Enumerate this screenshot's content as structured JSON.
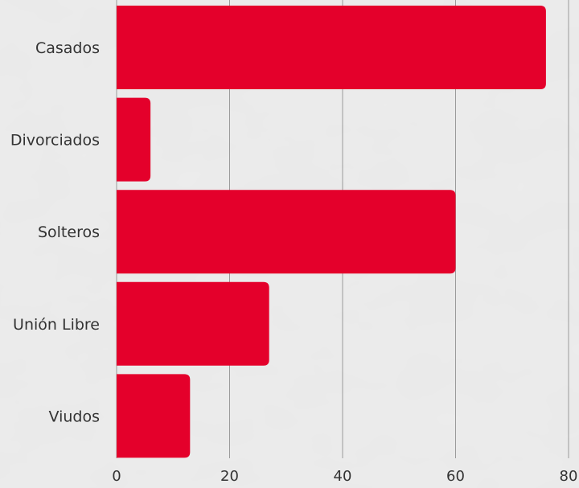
{
  "chart_data": {
    "type": "bar",
    "orientation": "horizontal",
    "categories": [
      "Casados",
      "Divorciados",
      "Solteros",
      "Unión Libre",
      "Viudos"
    ],
    "values": [
      76,
      6,
      60,
      27,
      13
    ],
    "x_ticks": [
      "0",
      "20",
      "40",
      "60",
      "80"
    ],
    "xlim": [
      0,
      80
    ],
    "grid": "vertical",
    "bar_color": "#e4002b"
  }
}
